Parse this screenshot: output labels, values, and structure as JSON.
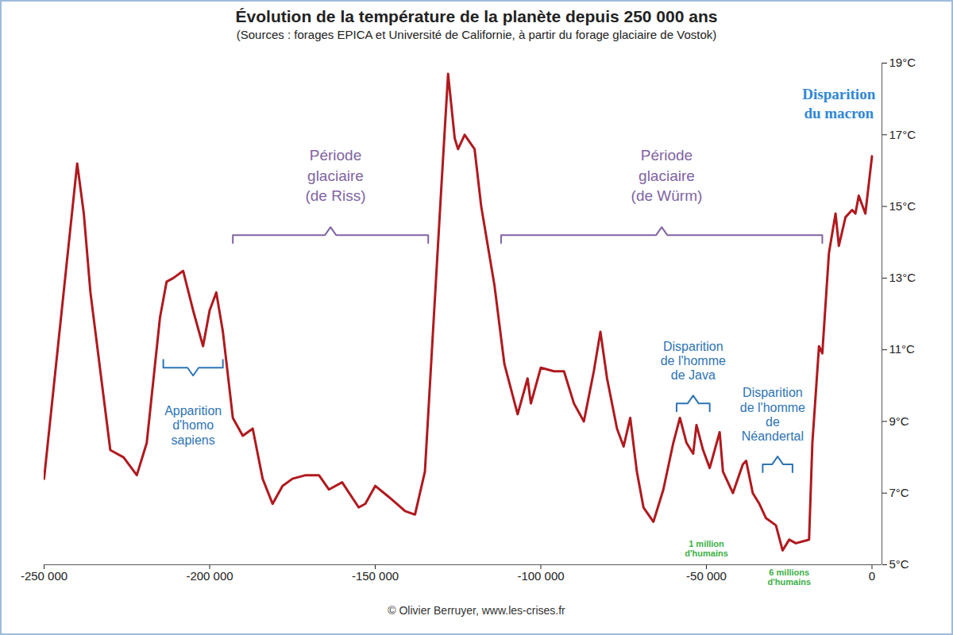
{
  "chart_data": {
    "type": "line",
    "title": "Évolution de la température de la planète depuis 250 000 ans",
    "subtitle": "(Sources : forages EPICA et Université de Californie, à partir du forage glaciaire de Vostok)",
    "caption": "© Olivier Berruyer, www.les-crises.fr",
    "color": "#b0191e",
    "grid": false,
    "x": [
      -250000,
      -240000,
      -238000,
      -236000,
      -233000,
      -230000,
      -226000,
      -222000,
      -219000,
      -215000,
      -213000,
      -211000,
      -208000,
      -205000,
      -202000,
      -200000,
      -198000,
      -196000,
      -193000,
      -190000,
      -187000,
      -184000,
      -181000,
      -178000,
      -175000,
      -171000,
      -167000,
      -164000,
      -160000,
      -155000,
      -153000,
      -150000,
      -146000,
      -141000,
      -138000,
      -135000,
      -133000,
      -130000,
      -128000,
      -126000,
      -125000,
      -123000,
      -120000,
      -118000,
      -114000,
      -111000,
      -107000,
      -104000,
      -103000,
      -100000,
      -96000,
      -93000,
      -90000,
      -87000,
      -84000,
      -82000,
      -80000,
      -77000,
      -75000,
      -73000,
      -71000,
      -69000,
      -66000,
      -63000,
      -60000,
      -58000,
      -56000,
      -54000,
      -53000,
      -51000,
      -49000,
      -46000,
      -45000,
      -42000,
      -39000,
      -38000,
      -36000,
      -34000,
      -32000,
      -29000,
      -27000,
      -25000,
      -23000,
      -19000,
      -18000,
      -16000,
      -15000,
      -13000,
      -11000,
      -10000,
      -8000,
      -6000,
      -5000,
      -4000,
      -2000,
      0
    ],
    "values": [
      7.4,
      16.2,
      14.8,
      12.6,
      10.4,
      8.2,
      8,
      7.5,
      8.4,
      11.9,
      12.9,
      13,
      13.2,
      12.1,
      11.1,
      12.1,
      12.6,
      11.5,
      9.1,
      8.6,
      8.8,
      7.4,
      6.7,
      7.2,
      7.4,
      7.5,
      7.5,
      7.1,
      7.3,
      6.6,
      6.7,
      7.2,
      6.9,
      6.5,
      6.4,
      7.6,
      10.8,
      15.6,
      18.7,
      16.9,
      16.6,
      17,
      16.6,
      15,
      12.8,
      10.6,
      9.2,
      10.2,
      9.5,
      10.5,
      10.4,
      10.4,
      9.5,
      9,
      10.4,
      11.5,
      10.2,
      8.8,
      8.3,
      9.1,
      7.6,
      6.6,
      6.2,
      7.1,
      8.4,
      9.1,
      8.4,
      8.1,
      8.9,
      8.2,
      7.7,
      8.7,
      7.6,
      7,
      7.8,
      7.9,
      7,
      6.7,
      6.3,
      6.1,
      5.4,
      5.7,
      5.6,
      5.7,
      8.4,
      11.1,
      10.9,
      13.7,
      14.8,
      13.9,
      14.7,
      14.9,
      14.8,
      15.3,
      14.8,
      16.4
    ],
    "xlim": [
      -250000,
      3000
    ],
    "xticks": [
      {
        "value": -250000,
        "label": "-250 000"
      },
      {
        "value": -200000,
        "label": "-200 000"
      },
      {
        "value": -150000,
        "label": "-150 000"
      },
      {
        "value": -100000,
        "label": "-100 000"
      },
      {
        "value": -50000,
        "label": "-50 000"
      },
      0
    ],
    "ylim": [
      5,
      19
    ],
    "yticks": [
      {
        "value": 5,
        "label": "5°C"
      },
      {
        "value": 7,
        "label": "7°C"
      },
      {
        "value": 9,
        "label": "9°C"
      },
      {
        "value": 11,
        "label": "11°C"
      },
      {
        "value": 13,
        "label": "13°C"
      },
      {
        "value": 15,
        "label": "15°C"
      },
      {
        "value": 17,
        "label": "17°C"
      },
      {
        "value": 19,
        "label": "19°C"
      }
    ],
    "periods": [
      {
        "text": "Période glaciaire (de Riss)",
        "x": -162000,
        "y": 15.9,
        "bracket": [
          -193000,
          -134000
        ],
        "bracket_y": 14.2,
        "color": "#8064a2"
      },
      {
        "text": "Période glaciaire (de Würm)",
        "x": -62000,
        "y": 15.9,
        "bracket": [
          -112000,
          -15000
        ],
        "bracket_y": 14.2,
        "color": "#8064a2"
      }
    ],
    "events": [
      {
        "text": "Apparition d'homo sapiens",
        "x": -205000,
        "y": 8.9,
        "bracket": [
          -214000,
          -196000
        ],
        "bracket_y": 10.5,
        "color": "#2e74b5"
      },
      {
        "text": "Disparition de l'homme de Java",
        "x": -54000,
        "y": 10.7,
        "bracket": [
          -59000,
          -49000
        ],
        "bracket_y": 9.5,
        "color": "#2e74b5"
      },
      {
        "text": "Disparition de l'homme de Néandertal",
        "x": -30000,
        "y": 9.2,
        "bracket": [
          -33000,
          -24000
        ],
        "bracket_y": 7.8,
        "color": "#2e74b5"
      }
    ],
    "end_note": {
      "text": "Disparition du macron",
      "x": -10000,
      "y": 17.9,
      "color": "#2f87d6"
    },
    "populations": [
      {
        "text": "1 million d'humains",
        "x": -50000,
        "y": 5.45,
        "color": "#3cb044"
      },
      {
        "text": "6 millions d'humains",
        "x": -25000,
        "y": 4.9,
        "color": "#3cb044"
      }
    ]
  }
}
